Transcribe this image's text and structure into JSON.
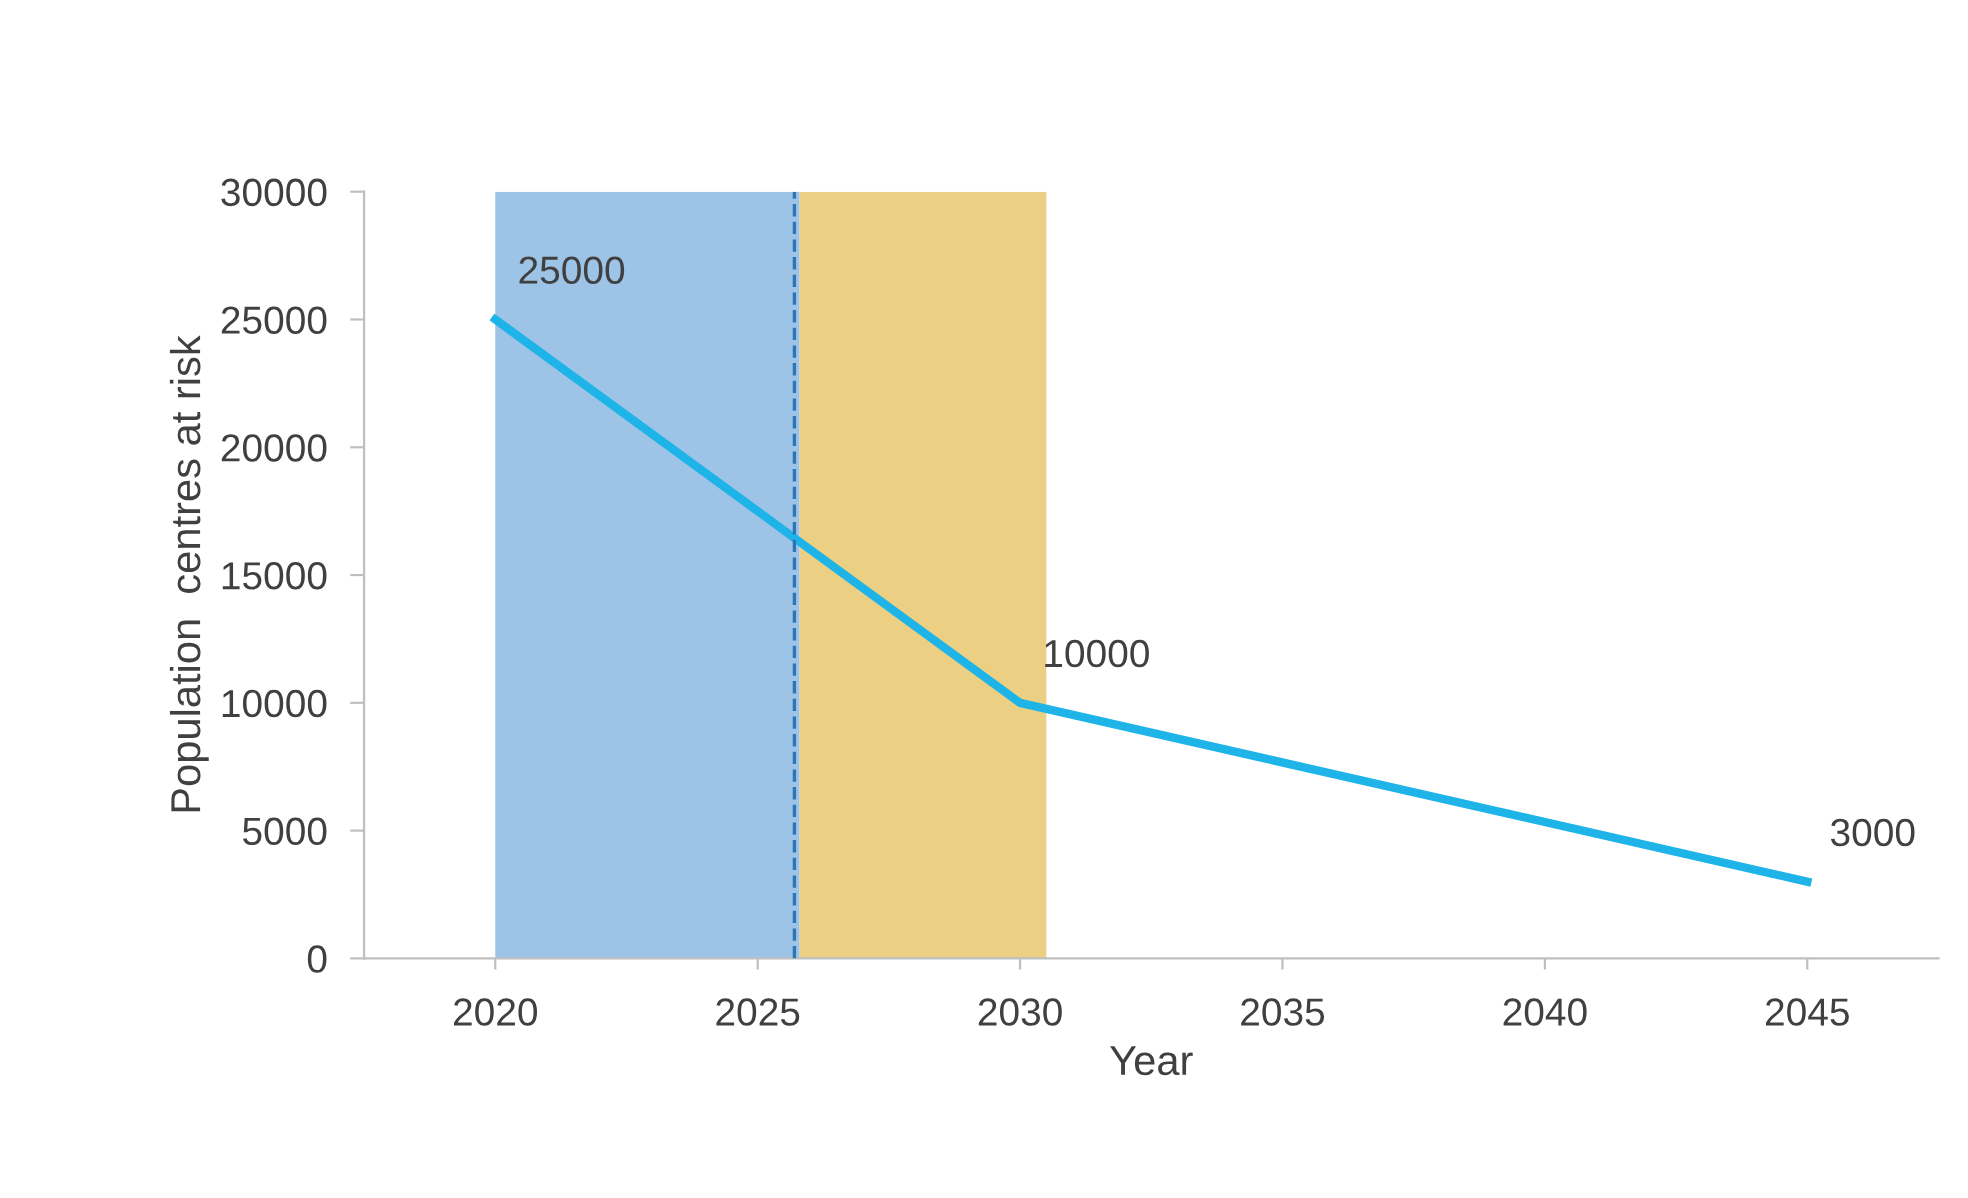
{
  "chart_data": {
    "type": "line",
    "xlabel": "Year",
    "ylabel": "Population  centres at risk",
    "x": [
      2020,
      2030,
      2045
    ],
    "series": [
      {
        "color": "#1fb4e8",
        "values": [
          25000,
          10000,
          3000
        ]
      }
    ],
    "data_labels": true,
    "xlim": [
      2017.5,
      2047.5
    ],
    "xticks": [
      2020,
      2025,
      2030,
      2035,
      2040,
      2045
    ],
    "ylim": [
      0,
      30000
    ],
    "yticks": [
      0,
      5000,
      10000,
      15000,
      20000,
      25000,
      30000
    ],
    "bands": [
      {
        "axis": "x",
        "from": 2020,
        "to": 2025.8,
        "color": "#9dc3e6"
      },
      {
        "axis": "x",
        "from": 2025.8,
        "to": 2030.5,
        "color": "#ebd083"
      }
    ],
    "ref_lines": [
      {
        "axis": "x",
        "value": 2025.7,
        "color": "#2e75b6",
        "line_style": "dashed"
      }
    ],
    "grid": false,
    "legend": false,
    "marker": "none",
    "line_style": "solid"
  }
}
